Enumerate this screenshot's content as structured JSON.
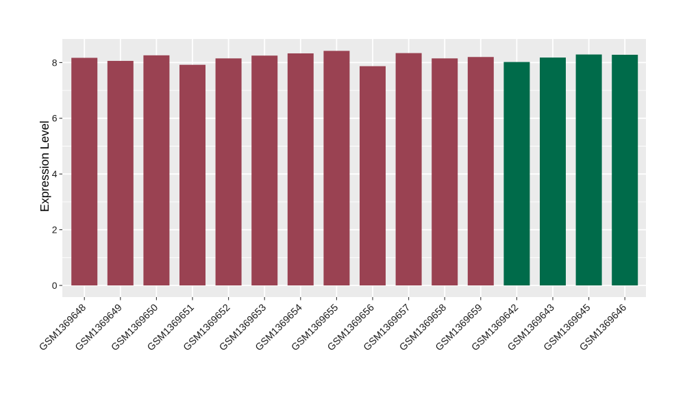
{
  "chart_data": {
    "type": "bar",
    "title": "",
    "xlabel": "",
    "ylabel": "Expression Level",
    "categories": [
      "GSM1369648",
      "GSM1369649",
      "GSM1369650",
      "GSM1369651",
      "GSM1369652",
      "GSM1369653",
      "GSM1369654",
      "GSM1369655",
      "GSM1369656",
      "GSM1369657",
      "GSM1369658",
      "GSM1369659",
      "GSM1369642",
      "GSM1369643",
      "GSM1369645",
      "GSM1369646"
    ],
    "values": [
      8.17,
      8.06,
      8.26,
      7.92,
      8.15,
      8.25,
      8.33,
      8.42,
      7.87,
      8.34,
      8.15,
      8.2,
      8.02,
      8.18,
      8.29,
      8.28
    ],
    "bar_colors": [
      "#9A4252",
      "#9A4252",
      "#9A4252",
      "#9A4252",
      "#9A4252",
      "#9A4252",
      "#9A4252",
      "#9A4252",
      "#9A4252",
      "#9A4252",
      "#9A4252",
      "#9A4252",
      "#006B4A",
      "#006B4A",
      "#006B4A",
      "#006B4A"
    ],
    "yticks": [
      0,
      2,
      4,
      6,
      8
    ],
    "yticks_minor": [
      1,
      3,
      5,
      7
    ],
    "ylim": [
      0,
      8.85
    ],
    "grid": "on",
    "legend_position": "none",
    "colors": {
      "panel_background": "#EBEBEB",
      "gridline": "#FFFFFF",
      "axis_text": "#1A1A1A",
      "tick_mark": "#333333",
      "figure_background": "#FFFFFF"
    }
  }
}
